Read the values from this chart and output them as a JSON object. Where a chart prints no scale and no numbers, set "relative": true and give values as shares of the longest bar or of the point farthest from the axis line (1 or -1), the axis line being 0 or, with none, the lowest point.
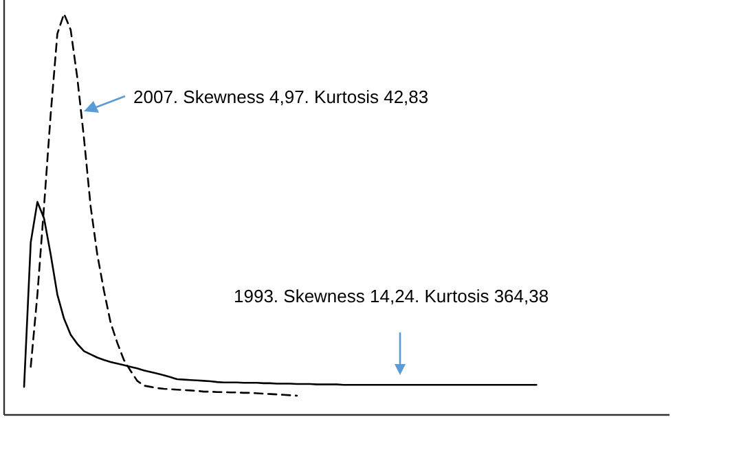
{
  "chart_data": {
    "type": "line",
    "relative": true,
    "categories": [
      null,
      null,
      null,
      null,
      null,
      null,
      null,
      null,
      null,
      null,
      null,
      null,
      null,
      null,
      null,
      null,
      null,
      null,
      null,
      null,
      null,
      null,
      null,
      null,
      null,
      null,
      null,
      null,
      null,
      null,
      null,
      null,
      null,
      null,
      null,
      null,
      null,
      null,
      null,
      null,
      null,
      null,
      null,
      null,
      null,
      null,
      null,
      null,
      null,
      null,
      null,
      null,
      null,
      null,
      null,
      null,
      null,
      null,
      null,
      null,
      null,
      null,
      null,
      null,
      null,
      null,
      null,
      null,
      null,
      null,
      null,
      null,
      null,
      null,
      null,
      null,
      null,
      null,
      null,
      null,
      null,
      null,
      null,
      null,
      null,
      null,
      null,
      null,
      null,
      null,
      null,
      null,
      null,
      null,
      null,
      null,
      null,
      null,
      null,
      null,
      null
    ],
    "series": [
      {
        "color": "#000000",
        "line_style": "solid",
        "values": [
          null,
          null,
          null,
          0.07,
          0.43,
          0.531,
          0.49,
          0.4,
          0.3,
          0.24,
          0.2,
          0.177,
          0.159,
          0.151,
          0.143,
          0.137,
          0.132,
          0.128,
          0.124,
          0.12,
          0.116,
          0.111,
          0.107,
          0.103,
          0.099,
          0.094,
          0.089,
          0.088,
          0.087,
          0.086,
          0.085,
          0.084,
          0.082,
          0.081,
          0.081,
          0.081,
          0.08,
          0.08,
          0.08,
          0.079,
          0.079,
          0.078,
          0.078,
          0.078,
          0.077,
          0.077,
          0.077,
          0.076,
          0.076,
          0.076,
          0.076,
          0.075,
          0.075,
          0.075,
          0.075,
          0.075,
          0.075,
          0.075,
          0.075,
          0.075,
          0.075,
          0.075,
          0.075,
          0.075,
          0.075,
          0.075,
          0.075,
          0.075,
          0.075,
          0.075,
          0.075,
          0.075,
          0.075,
          0.075,
          0.075,
          0.075,
          0.075,
          0.075,
          0.075,
          0.075,
          0.075,
          null,
          null,
          null,
          null,
          null,
          null,
          null,
          null,
          null,
          null,
          null,
          null,
          null,
          null,
          null,
          null,
          null,
          null,
          null,
          null
        ]
      },
      {
        "color": "#000000",
        "line_style": "dashed",
        "values": [
          null,
          null,
          null,
          null,
          0.12,
          0.3,
          0.52,
          0.75,
          0.95,
          1,
          0.96,
          0.84,
          0.69,
          0.52,
          0.4,
          0.31,
          0.23,
          0.18,
          0.137,
          0.11,
          0.085,
          0.073,
          0.07,
          0.067,
          0.065,
          0.064,
          0.063,
          0.062,
          0.061,
          0.06,
          0.058,
          0.058,
          0.057,
          0.057,
          0.056,
          0.056,
          0.055,
          0.055,
          0.054,
          0.053,
          0.052,
          0.051,
          0.05,
          0.049,
          0.048,
          null,
          null,
          null,
          null,
          null,
          null,
          null,
          null,
          null,
          null,
          null,
          null,
          null,
          null,
          null,
          null,
          null,
          null,
          null,
          null,
          null,
          null,
          null,
          null,
          null,
          null,
          null,
          null,
          null,
          null,
          null,
          null,
          null,
          null,
          null,
          null,
          null,
          null,
          null,
          null,
          null,
          null,
          null,
          null,
          null,
          null,
          null,
          null,
          null,
          null,
          null,
          null,
          null,
          null,
          null,
          null
        ]
      }
    ],
    "annotations": [
      "2007. Skewness 4,97. Kurtosis 42,83",
      "1993. Skewness 14,24. Kurtosis 364,38"
    ]
  }
}
